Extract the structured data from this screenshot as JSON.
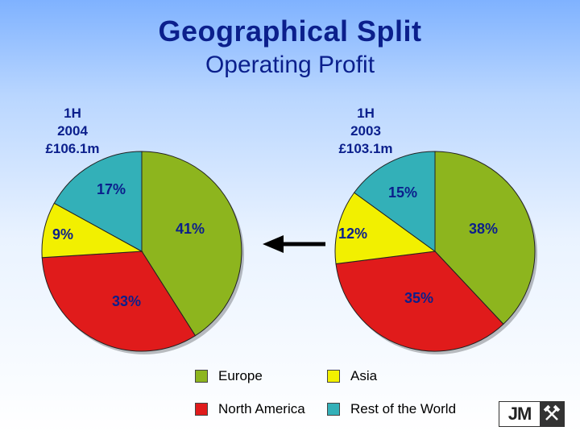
{
  "title": "Geographical Split",
  "subtitle": "Operating Profit",
  "colors": {
    "europe": "#8db51e",
    "asia": "#f2f000",
    "north_america": "#e01b1b",
    "rest_of_world": "#33b0b8",
    "text": "#0b1f8c"
  },
  "chart_data": [
    {
      "type": "pie",
      "period": [
        "1H",
        "2004",
        "£106.1m"
      ],
      "categories": [
        "Europe",
        "North America",
        "Asia",
        "Rest of the World"
      ],
      "values": [
        41,
        33,
        9,
        17
      ],
      "labels": [
        "41%",
        "33%",
        "9%",
        "17%"
      ]
    },
    {
      "type": "pie",
      "period": [
        "1H",
        "2003",
        "£103.1m"
      ],
      "categories": [
        "Europe",
        "North America",
        "Asia",
        "Rest of the World"
      ],
      "values": [
        38,
        35,
        12,
        15
      ],
      "labels": [
        "38%",
        "35%",
        "12%",
        "15%"
      ]
    }
  ],
  "legend": [
    {
      "label": "Europe",
      "color_key": "europe"
    },
    {
      "label": "Asia",
      "color_key": "asia"
    },
    {
      "label": "North America",
      "color_key": "north_america"
    },
    {
      "label": "Rest of the World",
      "color_key": "rest_of_world"
    }
  ],
  "arrow_direction": "left",
  "logo": {
    "text": "JM",
    "icon": "crossed-hammers-icon"
  }
}
